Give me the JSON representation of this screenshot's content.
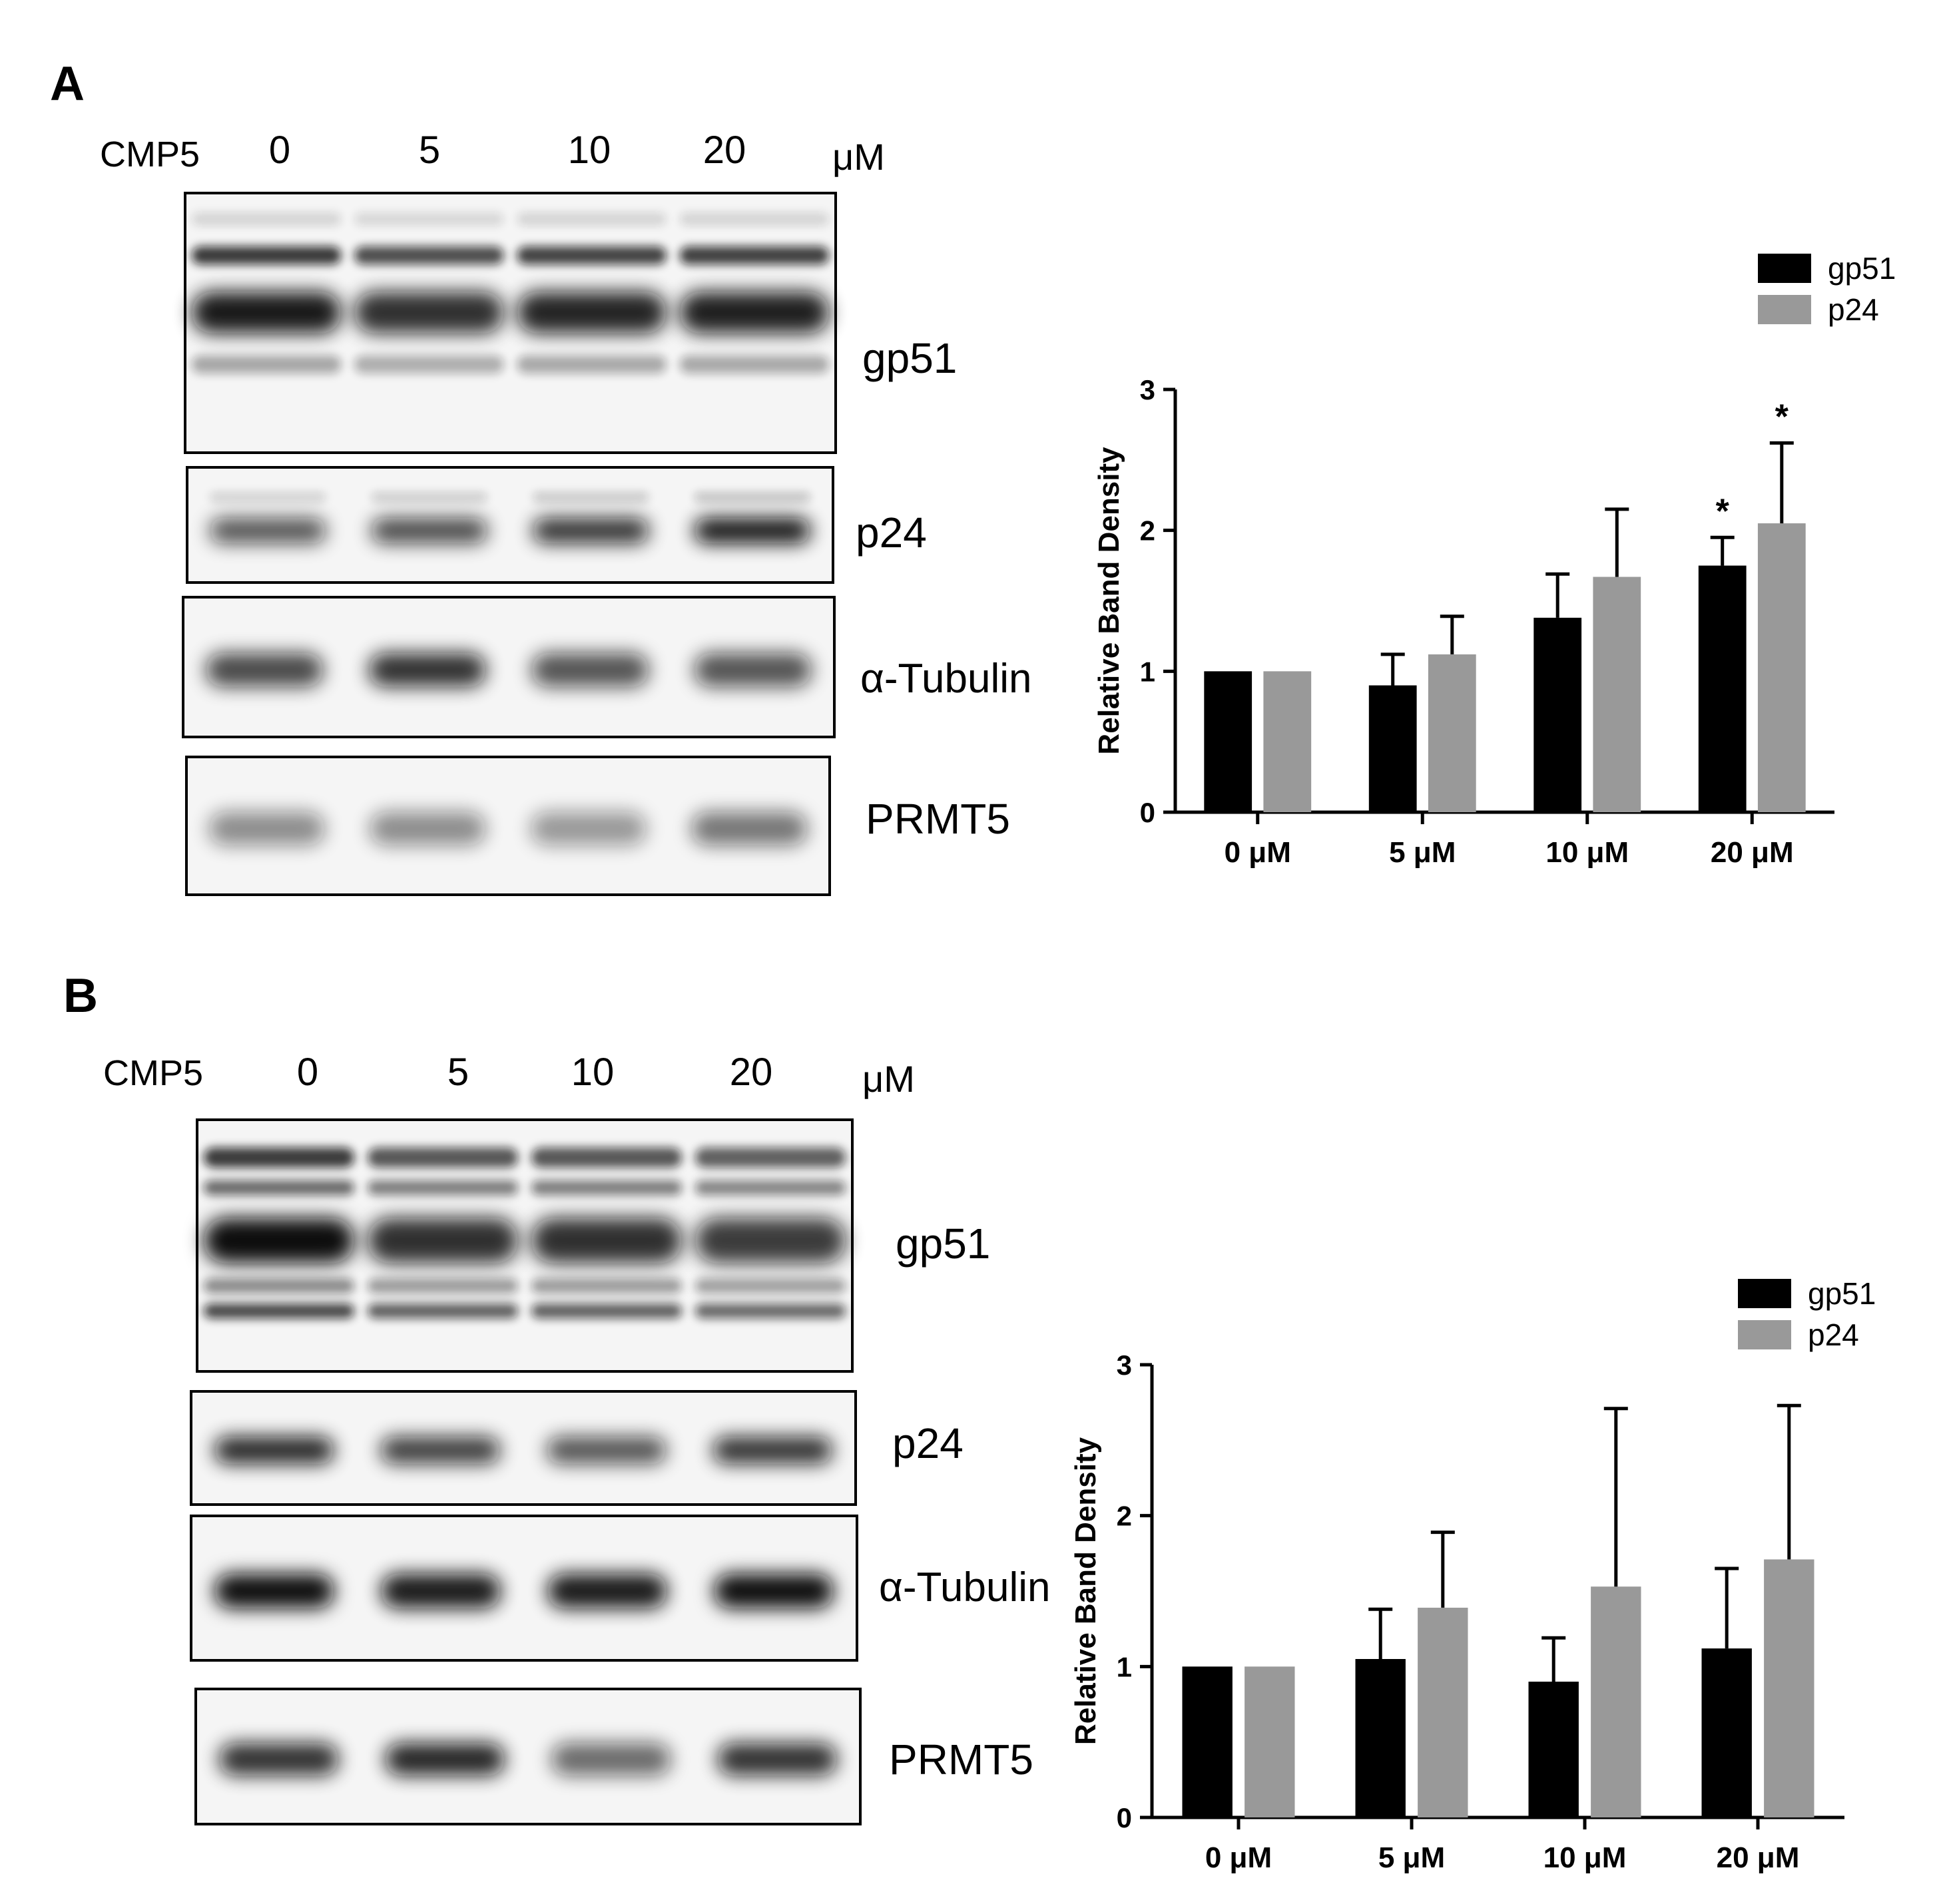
{
  "panels": [
    {
      "letter": "A",
      "blot": {
        "treatment_label": "CMP5",
        "doses": [
          "0",
          "5",
          "10",
          "20"
        ],
        "unit": "μM",
        "rows": [
          {
            "label": "gp51",
            "profile": "gp51_a",
            "lane_intensity": [
              0.95,
              0.85,
              0.9,
              0.92
            ]
          },
          {
            "label": "p24",
            "profile": "p24",
            "lane_intensity": [
              0.7,
              0.75,
              0.85,
              0.98
            ]
          },
          {
            "label": "α-Tubulin",
            "profile": "single",
            "lane_intensity": [
              0.75,
              0.85,
              0.7,
              0.7
            ]
          },
          {
            "label": "PRMT5",
            "profile": "single",
            "lane_intensity": [
              0.45,
              0.45,
              0.4,
              0.55
            ]
          }
        ]
      }
    },
    {
      "letter": "B",
      "blot": {
        "treatment_label": "CMP5",
        "doses": [
          "0",
          "5",
          "10",
          "20"
        ],
        "unit": "μM",
        "rows": [
          {
            "label": "gp51",
            "profile": "gp51_b",
            "lane_intensity": [
              1.0,
              0.85,
              0.85,
              0.8
            ]
          },
          {
            "label": "p24",
            "profile": "single",
            "lane_intensity": [
              0.9,
              0.8,
              0.7,
              0.85
            ]
          },
          {
            "label": "α-Tubulin",
            "profile": "single",
            "lane_intensity": [
              1.0,
              0.95,
              0.95,
              1.0
            ]
          },
          {
            "label": "PRMT5",
            "profile": "single",
            "lane_intensity": [
              0.85,
              0.9,
              0.6,
              0.85
            ]
          }
        ]
      }
    }
  ],
  "chart_data": [
    {
      "type": "bar",
      "categories": [
        "0 μM",
        "5 μM",
        "10 μM",
        "20 μM"
      ],
      "ylabel": "Relative Band Density",
      "xlabel": "",
      "ylim": [
        0,
        3
      ],
      "yticks": [
        "0",
        "1",
        "2",
        "3"
      ],
      "legend_position": "top-right",
      "series": [
        {
          "name": "gp51",
          "color": "#000000",
          "values": [
            1.0,
            0.9,
            1.38,
            1.75
          ],
          "errors": [
            0,
            0.22,
            0.31,
            0.2
          ]
        },
        {
          "name": "p24",
          "color": "#999999",
          "values": [
            1.0,
            1.12,
            1.67,
            2.05
          ],
          "errors": [
            0,
            0.27,
            0.48,
            0.57
          ]
        }
      ],
      "annotations": [
        {
          "text": "*",
          "category": "20 μM",
          "series": "gp51"
        },
        {
          "text": "*",
          "category": "20 μM",
          "series": "p24"
        }
      ]
    },
    {
      "type": "bar",
      "categories": [
        "0 μM",
        "5 μM",
        "10 μM",
        "20 μM"
      ],
      "ylabel": "Relative Band Density",
      "xlabel": "",
      "ylim": [
        0,
        3
      ],
      "yticks": [
        "0",
        "1",
        "2",
        "3"
      ],
      "legend_position": "top-right",
      "series": [
        {
          "name": "gp51",
          "color": "#000000",
          "values": [
            1.0,
            1.05,
            0.9,
            1.12
          ],
          "errors": [
            0,
            0.33,
            0.29,
            0.53
          ]
        },
        {
          "name": "p24",
          "color": "#999999",
          "values": [
            1.0,
            1.39,
            1.53,
            1.71
          ],
          "errors": [
            0,
            0.5,
            1.18,
            1.02
          ]
        }
      ],
      "annotations": []
    }
  ]
}
